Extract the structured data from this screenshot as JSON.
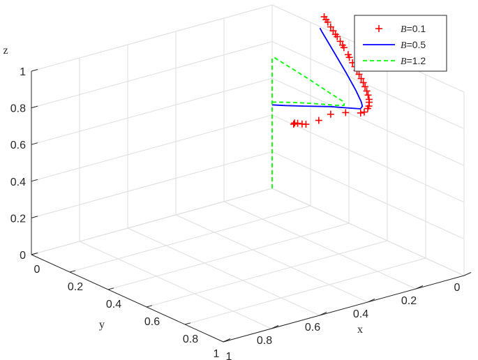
{
  "chart_data": {
    "type": "line3d",
    "title": "",
    "xlabel": "x",
    "ylabel": "y",
    "zlabel": "z",
    "xlim": [
      0,
      1
    ],
    "ylim": [
      0,
      1
    ],
    "zlim": [
      0,
      1
    ],
    "x_ticks": [
      "0",
      "0.2",
      "0.4",
      "0.6",
      "0.8",
      "1"
    ],
    "y_ticks": [
      "0",
      "0.2",
      "0.4",
      "0.6",
      "0.8",
      "1"
    ],
    "z_ticks": [
      "0",
      "0.2",
      "0.4",
      "0.6",
      "0.8",
      "1"
    ],
    "grid": true,
    "legend_position": "top-right",
    "series": [
      {
        "name_prefix": "B",
        "name_suffix": "=0.1",
        "style": "markers-plus",
        "color": "#ff0000",
        "points": [
          [
            0.112,
            0.0,
            0.403
          ],
          [
            0.117,
            0.0,
            0.412
          ],
          [
            0.133,
            0.0,
            0.418
          ],
          [
            0.156,
            0.0,
            0.425
          ],
          [
            0.176,
            0.0,
            0.433
          ],
          [
            0.243,
            0.0,
            0.486
          ],
          [
            0.305,
            0.0,
            0.549
          ],
          [
            0.383,
            0.0,
            0.595
          ],
          [
            0.461,
            0.0,
            0.63
          ],
          [
            0.48,
            0.0,
            0.644
          ],
          [
            0.498,
            0.0,
            0.672
          ],
          [
            0.504,
            0.0,
            0.688
          ],
          [
            0.506,
            0.0,
            0.71
          ],
          [
            0.505,
            0.0,
            0.725
          ],
          [
            0.5,
            0.0,
            0.746
          ],
          [
            0.493,
            0.0,
            0.765
          ],
          [
            0.484,
            0.0,
            0.784
          ],
          [
            0.475,
            0.0,
            0.802
          ],
          [
            0.464,
            0.0,
            0.819
          ],
          [
            0.453,
            0.0,
            0.837
          ],
          [
            0.442,
            0.0,
            0.853
          ],
          [
            0.431,
            0.0,
            0.868
          ],
          [
            0.419,
            0.0,
            0.884
          ],
          [
            0.402,
            0.0,
            0.905
          ],
          [
            0.396,
            0.0,
            0.917
          ],
          [
            0.374,
            0.0,
            0.945
          ],
          [
            0.367,
            0.0,
            0.955
          ],
          [
            0.355,
            0.0,
            0.97
          ],
          [
            0.339,
            0.0,
            0.988
          ],
          [
            0.33,
            0.0,
            0.996
          ],
          [
            0.318,
            0.0,
            1.01
          ],
          [
            0.305,
            0.0,
            1.025
          ],
          [
            0.29,
            0.0,
            1.044
          ],
          [
            0.281,
            0.0,
            1.053
          ],
          [
            0.271,
            0.0,
            1.064
          ]
        ]
      },
      {
        "name_prefix": "B",
        "name_suffix": "=0.5",
        "style": "solid",
        "color": "#0000ff",
        "points": [
          [
            0.0,
            0.0,
            0.455
          ],
          [
            0.069,
            0.0,
            0.484
          ],
          [
            0.172,
            0.0,
            0.53
          ],
          [
            0.304,
            0.0,
            0.59
          ],
          [
            0.415,
            0.0,
            0.634
          ],
          [
            0.46,
            0.0,
            0.652
          ],
          [
            0.47,
            0.0,
            0.671
          ],
          [
            0.464,
            0.0,
            0.693
          ],
          [
            0.436,
            0.0,
            0.742
          ],
          [
            0.386,
            0.0,
            0.813
          ],
          [
            0.323,
            0.0,
            0.895
          ],
          [
            0.258,
            0.0,
            0.979
          ],
          [
            0.249,
            0.0,
            0.992
          ]
        ]
      },
      {
        "name_prefix": "B",
        "name_suffix": "=1.2",
        "style": "dashed",
        "color": "#00ff00",
        "points": [
          [
            0.0,
            0.0,
            0.0
          ],
          [
            0.0,
            0.0,
            0.2
          ],
          [
            0.0,
            0.0,
            0.4
          ],
          [
            0.0,
            0.0,
            0.5
          ],
          [
            0.0,
            0.0,
            0.59
          ],
          [
            0.0,
            0.0,
            0.67
          ],
          [
            0.0,
            0.0,
            0.71
          ],
          [
            0.012,
            0.0,
            0.718
          ],
          [
            0.041,
            0.0,
            0.713
          ],
          [
            0.116,
            0.0,
            0.7
          ],
          [
            0.196,
            0.0,
            0.685
          ],
          [
            0.299,
            0.0,
            0.663
          ],
          [
            0.367,
            0.0,
            0.65
          ],
          [
            0.376,
            0.0,
            0.644
          ],
          [
            0.374,
            0.0,
            0.63
          ],
          [
            0.328,
            0.0,
            0.609
          ],
          [
            0.254,
            0.0,
            0.58
          ],
          [
            0.18,
            0.0,
            0.55
          ],
          [
            0.104,
            0.0,
            0.518
          ],
          [
            0.01,
            0.0,
            0.475
          ],
          [
            0.0,
            0.0,
            0.47
          ]
        ]
      }
    ]
  }
}
